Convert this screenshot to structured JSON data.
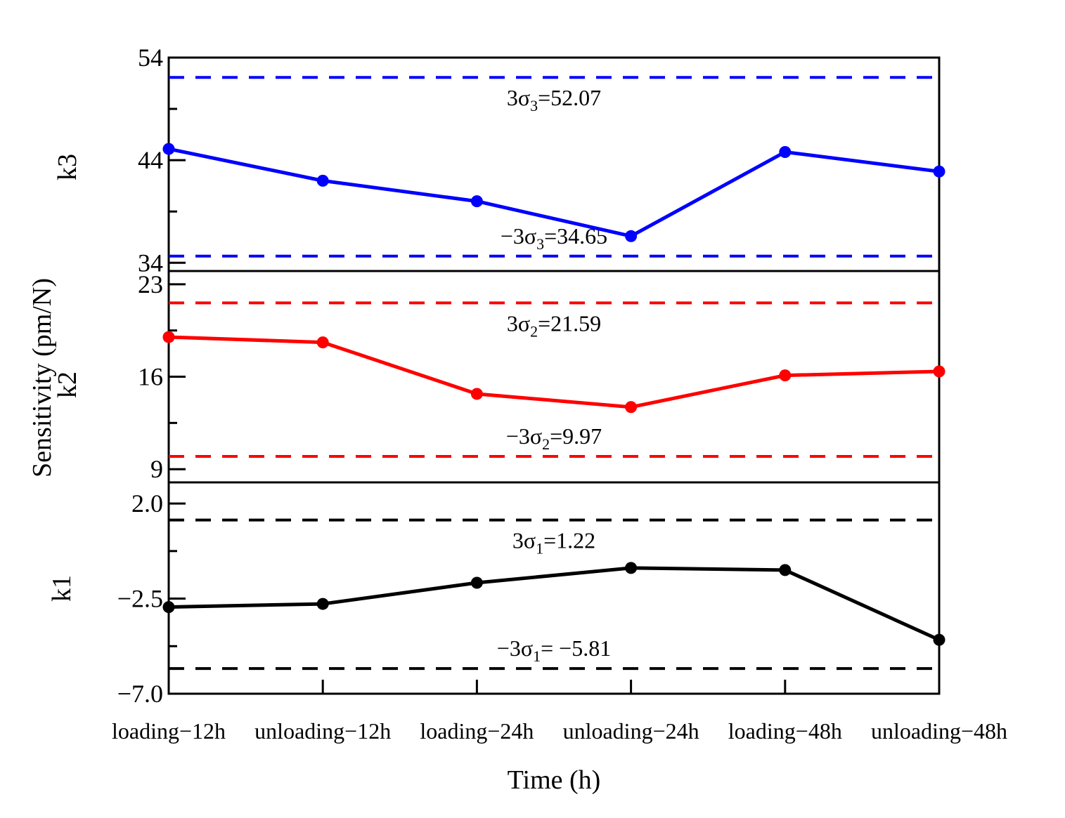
{
  "chart_data": {
    "type": "line",
    "x_title": "Time (h)",
    "y_title": "Sensitivity (pm/N)",
    "categories": [
      "loading−12h",
      "unloading−12h",
      "loading−24h",
      "unloading−24h",
      "loading−48h",
      "unloading−48h"
    ],
    "panels": [
      {
        "id": "k3",
        "ylabel": "k3",
        "color": "#0000ff",
        "ylim": [
          33.2,
          54
        ],
        "major_ticks": [
          34,
          44,
          54
        ],
        "tick_labels": [
          "34",
          "44",
          "54"
        ],
        "values": [
          45.1,
          42.0,
          40.0,
          36.6,
          44.8,
          42.9
        ],
        "bounds": [
          {
            "value": 52.07,
            "pre": "3σ",
            "sub": "3",
            "post": "=52.07"
          },
          {
            "value": 34.65,
            "pre": "−3σ",
            "sub": "3",
            "post": "=34.65"
          }
        ]
      },
      {
        "id": "k2",
        "ylabel": "k2",
        "color": "#ff0000",
        "ylim": [
          8.0,
          24.0
        ],
        "major_ticks": [
          9,
          16,
          23
        ],
        "tick_labels": [
          "9",
          "16",
          "23"
        ],
        "values": [
          19.0,
          18.6,
          14.7,
          13.7,
          16.1,
          16.4
        ],
        "bounds": [
          {
            "value": 21.59,
            "pre": "3σ",
            "sub": "2",
            "post": "=21.59"
          },
          {
            "value": 9.97,
            "pre": "−3σ",
            "sub": "2",
            "post": "=9.97"
          }
        ]
      },
      {
        "id": "k1",
        "ylabel": "k1",
        "color": "#000000",
        "ylim": [
          -7.0,
          3.0
        ],
        "major_ticks": [
          -7.0,
          -2.5,
          2.0
        ],
        "tick_labels": [
          "−7.0",
          "−2.5",
          "2.0"
        ],
        "values": [
          -2.9,
          -2.75,
          -1.75,
          -1.05,
          -1.15,
          -4.45
        ],
        "bounds": [
          {
            "value": 1.22,
            "pre": "3σ",
            "sub": "1",
            "post": "=1.22"
          },
          {
            "value": -5.81,
            "pre": "−3σ",
            "sub": "1",
            "post": "= −5.81"
          }
        ]
      }
    ]
  }
}
